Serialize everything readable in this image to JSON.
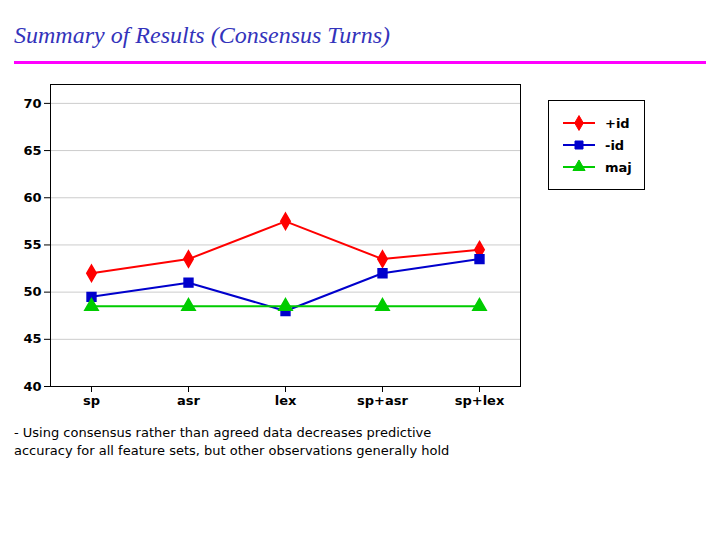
{
  "chart_data": {
    "type": "line",
    "title": "Summary of Results (Consensus Turns)",
    "categories": [
      "sp",
      "asr",
      "lex",
      "sp+asr",
      "sp+lex"
    ],
    "series": [
      {
        "name": "+id",
        "color": "#ff0000",
        "marker": "diamond",
        "values": [
          52,
          53.5,
          57.5,
          53.5,
          54.5
        ]
      },
      {
        "name": "-id",
        "color": "#0000cc",
        "marker": "square",
        "values": [
          49.5,
          51,
          48,
          52,
          53.5
        ]
      },
      {
        "name": "maj",
        "color": "#00cc00",
        "marker": "triangle",
        "values": [
          48.5,
          48.5,
          48.5,
          48.5,
          48.5
        ]
      }
    ],
    "ylim": [
      40,
      72
    ],
    "yticks": [
      40,
      45,
      50,
      55,
      60,
      65,
      70
    ],
    "grid": true,
    "legend": "right",
    "annotation": "- Using consensus rather than agreed data decreases predictive\naccuracy for all feature sets, but other observations generally hold"
  }
}
